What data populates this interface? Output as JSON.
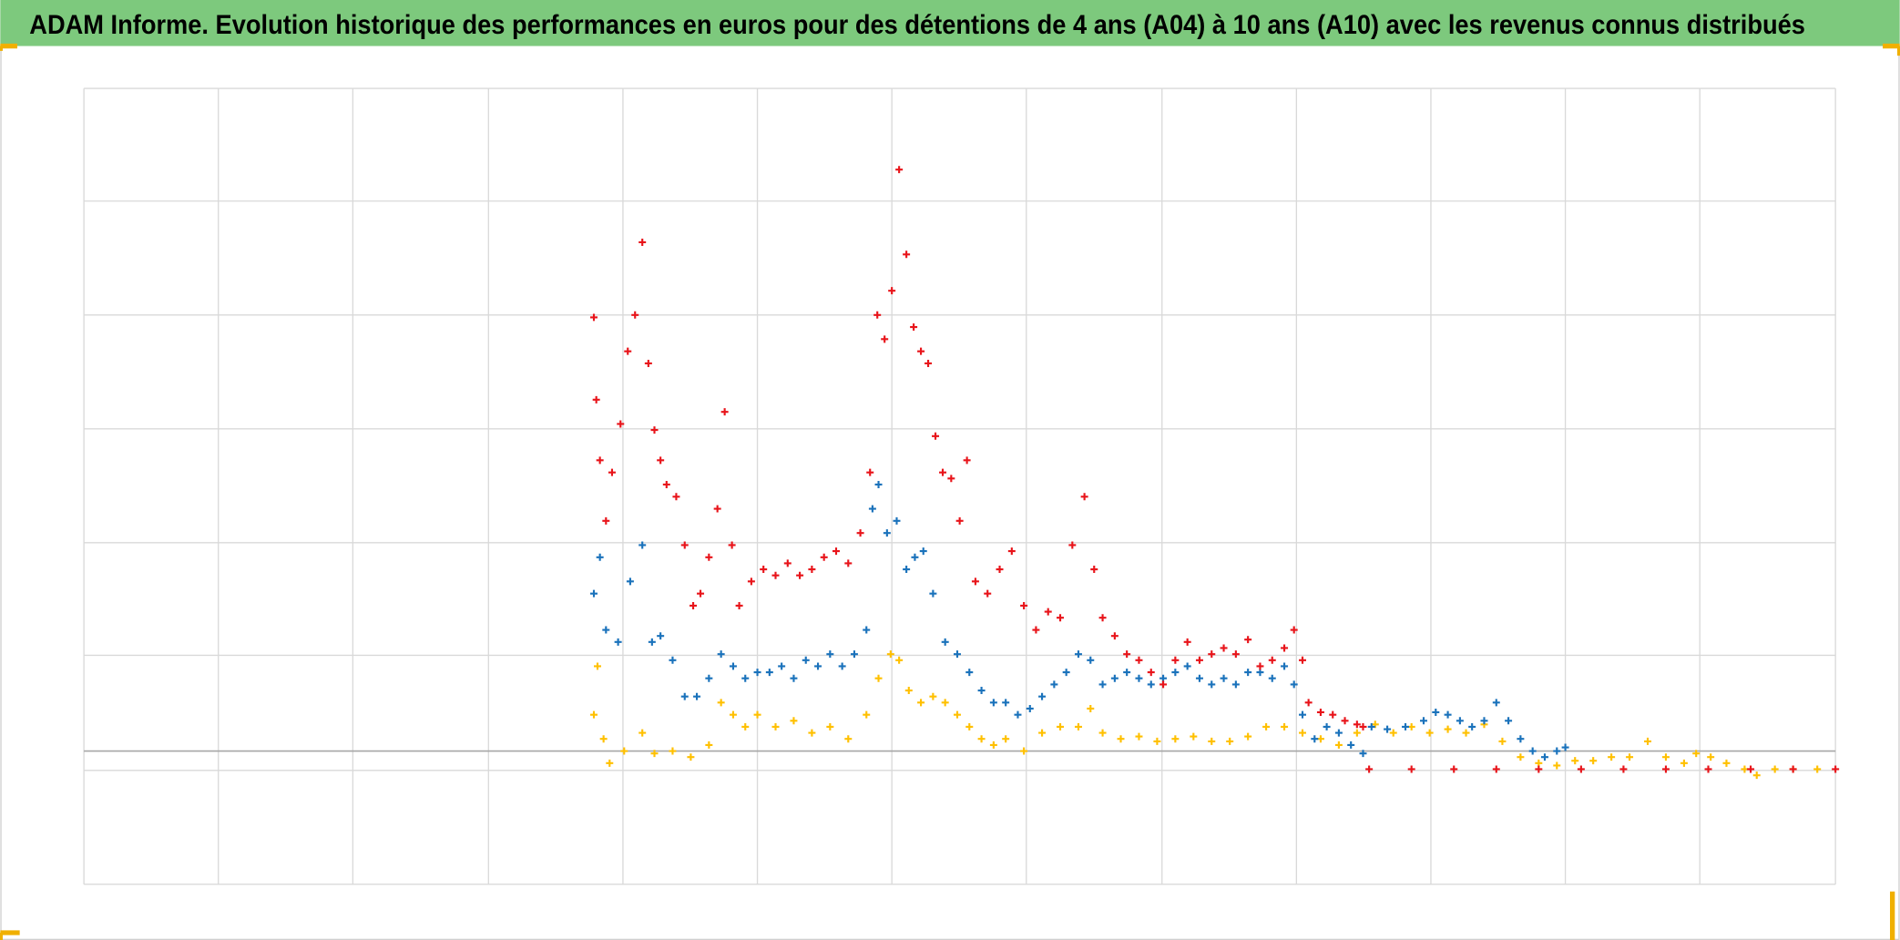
{
  "chart_data": {
    "type": "scatter",
    "title": "ADAM Informe. Evolution historique des performances en euros pour des détentions de 4 ans (A04) à 10 ans (A10) avec les revenus connus distribués",
    "xlim": [
      69,
      1515
    ],
    "xticks": [
      69,
      180,
      291,
      403,
      514,
      625,
      736,
      847,
      959,
      1070,
      1181,
      1292,
      1403,
      1515
    ],
    "ylim": [
      0,
      657
    ],
    "yticks": [
      0,
      94,
      189,
      282,
      376,
      470,
      564,
      657
    ],
    "xaxis_at": 110,
    "grid": true,
    "series": [
      {
        "color": "#ffc000",
        "x": [
          490,
          493,
          498,
          503,
          515,
          530,
          540,
          555,
          570,
          585,
          595,
          605,
          615,
          625,
          640,
          655,
          670,
          685,
          700,
          715,
          725,
          735,
          742,
          750,
          760,
          770,
          780,
          790,
          800,
          810,
          820,
          830,
          845,
          860,
          875,
          890,
          900,
          910,
          925,
          940,
          955,
          970,
          985,
          1000,
          1015,
          1030,
          1045,
          1060,
          1075,
          1090,
          1105,
          1120,
          1135,
          1150,
          1165,
          1180,
          1195,
          1210,
          1225,
          1240,
          1255,
          1270,
          1285,
          1300,
          1315,
          1330,
          1345,
          1360,
          1375,
          1390,
          1400,
          1412,
          1425,
          1440,
          1450,
          1465,
          1480,
          1500
        ],
        "values": [
          140,
          180,
          120,
          100,
          110,
          125,
          108,
          110,
          105,
          115,
          150,
          140,
          130,
          140,
          130,
          135,
          125,
          130,
          120,
          140,
          170,
          190,
          185,
          160,
          150,
          155,
          150,
          140,
          130,
          120,
          115,
          120,
          110,
          125,
          130,
          130,
          145,
          125,
          120,
          122,
          118,
          120,
          122,
          118,
          118,
          122,
          130,
          130,
          125,
          120,
          115,
          125,
          132,
          125,
          130,
          125,
          128,
          125,
          132,
          118,
          105,
          100,
          98,
          102,
          102,
          105,
          105,
          118,
          105,
          100,
          108,
          105,
          100,
          95,
          90,
          95,
          95,
          95
        ]
      },
      {
        "color": "#1a72bb",
        "x": [
          490,
          495,
          500,
          510,
          520,
          530,
          538,
          545,
          555,
          565,
          575,
          585,
          595,
          605,
          615,
          625,
          635,
          645,
          655,
          665,
          675,
          685,
          695,
          705,
          715,
          720,
          725,
          732,
          740,
          748,
          755,
          762,
          770,
          780,
          790,
          800,
          810,
          820,
          830,
          840,
          850,
          860,
          870,
          880,
          890,
          900,
          910,
          920,
          930,
          940,
          950,
          960,
          970,
          980,
          990,
          1000,
          1010,
          1020,
          1030,
          1040,
          1050,
          1060,
          1068,
          1075,
          1085,
          1095,
          1105,
          1115,
          1125,
          1132,
          1145,
          1160,
          1175,
          1185,
          1195,
          1205,
          1215,
          1225,
          1235,
          1245,
          1255,
          1265,
          1275,
          1285,
          1292
        ],
        "values": [
          240,
          270,
          210,
          200,
          250,
          280,
          200,
          205,
          185,
          155,
          155,
          170,
          190,
          180,
          170,
          175,
          175,
          180,
          170,
          185,
          180,
          190,
          180,
          190,
          210,
          310,
          330,
          290,
          300,
          260,
          270,
          275,
          240,
          200,
          190,
          175,
          160,
          150,
          150,
          140,
          145,
          155,
          165,
          175,
          190,
          185,
          165,
          170,
          175,
          170,
          165,
          170,
          175,
          180,
          170,
          165,
          170,
          165,
          175,
          175,
          170,
          180,
          165,
          140,
          120,
          130,
          125,
          115,
          108,
          130,
          128,
          130,
          135,
          142,
          140,
          135,
          130,
          135,
          150,
          135,
          120,
          110,
          105,
          110,
          113
        ]
      },
      {
        "color": "#e8141a",
        "x": [
          490,
          492,
          495,
          500,
          505,
          512,
          518,
          524,
          530,
          535,
          540,
          545,
          550,
          558,
          565,
          572,
          578,
          585,
          592,
          598,
          604,
          610,
          620,
          630,
          640,
          650,
          660,
          670,
          680,
          690,
          700,
          710,
          718,
          724,
          730,
          736,
          742,
          748,
          754,
          760,
          766,
          772,
          778,
          785,
          792,
          798,
          805,
          815,
          825,
          835,
          845,
          855,
          865,
          875,
          885,
          895,
          903,
          910,
          920,
          930,
          940,
          950,
          960,
          970,
          980,
          990,
          1000,
          1010,
          1020,
          1030,
          1040,
          1050,
          1060,
          1068,
          1075,
          1080,
          1090,
          1100,
          1110,
          1120,
          1125,
          1130,
          1165,
          1200,
          1235,
          1270,
          1305,
          1340,
          1375,
          1410,
          1445,
          1480,
          1515
        ],
        "values": [
          468,
          400,
          350,
          300,
          340,
          380,
          440,
          470,
          530,
          430,
          375,
          350,
          330,
          320,
          280,
          230,
          240,
          270,
          310,
          390,
          280,
          230,
          250,
          260,
          255,
          265,
          255,
          260,
          270,
          275,
          265,
          290,
          340,
          470,
          450,
          490,
          590,
          520,
          460,
          440,
          430,
          370,
          340,
          335,
          300,
          350,
          250,
          240,
          260,
          275,
          230,
          210,
          225,
          220,
          280,
          320,
          260,
          220,
          205,
          190,
          185,
          175,
          165,
          185,
          200,
          185,
          190,
          195,
          190,
          202,
          180,
          185,
          195,
          210,
          185,
          150,
          142,
          140,
          135,
          132,
          130,
          95,
          95,
          95,
          95,
          95,
          95,
          95,
          95,
          95,
          95,
          95,
          95
        ]
      }
    ]
  }
}
